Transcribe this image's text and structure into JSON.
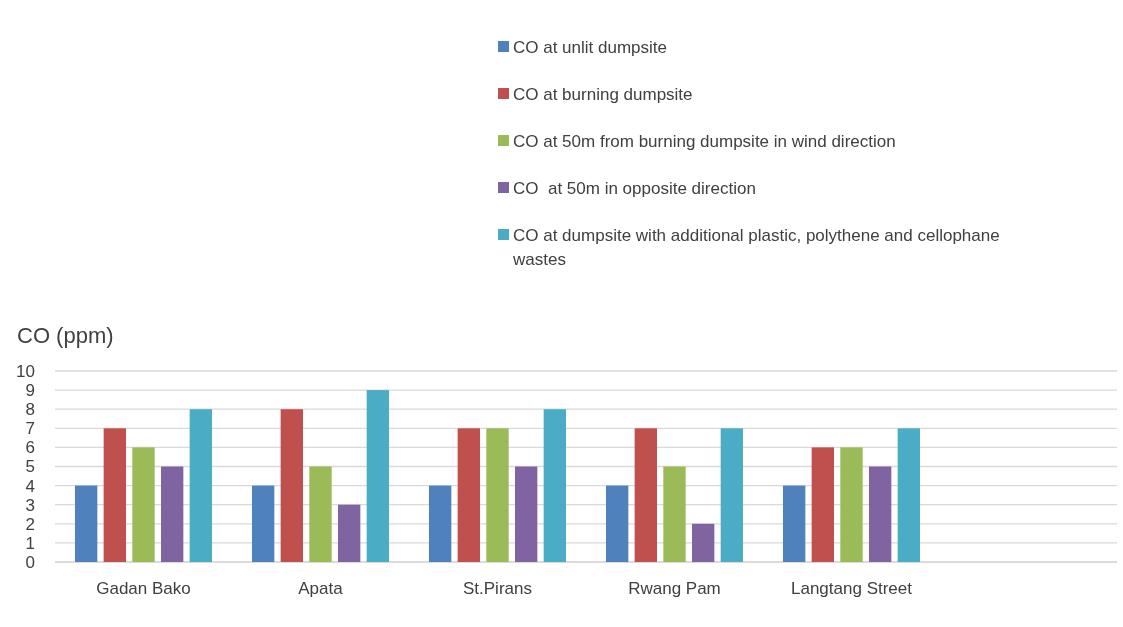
{
  "chart_data": {
    "type": "bar",
    "ylabel": "CO (ppm)",
    "categories": [
      "Gadan Bako",
      "Apata",
      "St.Pirans",
      "Rwang Pam",
      "Langtang Street",
      null
    ],
    "series": [
      {
        "name": "CO at unlit dumpsite",
        "color": "#4f81bd",
        "values": [
          4,
          4,
          4,
          4,
          4,
          null
        ]
      },
      {
        "name": "CO at burning dumpsite",
        "color": "#c0504d",
        "values": [
          7,
          8,
          7,
          7,
          6,
          null
        ]
      },
      {
        "name": "CO at 50m from burning dumpsite in wind direction",
        "color": "#9bbb59",
        "values": [
          6,
          5,
          7,
          5,
          6,
          null
        ]
      },
      {
        "name": "CO  at 50m in opposite direction",
        "color": "#8064a2",
        "values": [
          5,
          3,
          5,
          2,
          5,
          null
        ]
      },
      {
        "name": "CO at dumpsite with additional plastic, polythene and cellophane wastes",
        "color": "#4bacc6",
        "values": [
          8,
          9,
          8,
          7,
          7,
          null
        ]
      }
    ],
    "ylim": [
      0,
      10
    ],
    "yticks": [
      0,
      1,
      2,
      3,
      4,
      5,
      6,
      7,
      8,
      9,
      10
    ],
    "grid": "y",
    "legend": "top right"
  }
}
